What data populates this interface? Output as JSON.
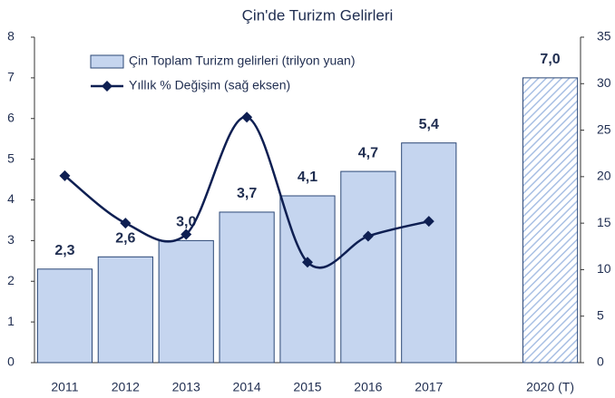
{
  "chart_data": {
    "type": "bar_line",
    "title": "Çin'de Turizm Gelirleri",
    "categories": [
      "2011",
      "2012",
      "2013",
      "2014",
      "2015",
      "2016",
      "2017",
      null,
      "2020 (T)"
    ],
    "series": [
      {
        "name": "Çin Toplam Turizm gelirleri (trilyon yuan)",
        "type": "bar",
        "color": "#c5d5ef",
        "edge_color": "#2b4776",
        "values": [
          2.3,
          2.6,
          3.0,
          3.7,
          4.1,
          4.7,
          5.4,
          null,
          7.0
        ],
        "value_labels": [
          "2,3",
          "2,6",
          "3,0",
          "3,7",
          "4,1",
          "4,7",
          "5,4",
          null,
          "7,0"
        ],
        "styles": [
          "solid",
          "solid",
          "solid",
          "solid",
          "solid",
          "solid",
          "solid",
          null,
          "hatched"
        ]
      },
      {
        "name": "Yıllık % Değişim (sağ eksen)",
        "type": "line",
        "axis": "y2",
        "color": "#0e1f52",
        "smooth": true,
        "values": [
          20.1,
          15.0,
          13.8,
          26.4,
          10.8,
          13.6,
          15.2,
          null,
          null
        ]
      }
    ],
    "ylim": [
      0,
      8
    ],
    "yticks": [
      0,
      1,
      2,
      3,
      4,
      5,
      6,
      7,
      8
    ],
    "y2lim": [
      0,
      35
    ],
    "y2ticks": [
      0,
      5,
      10,
      15,
      20,
      25,
      30,
      35
    ],
    "legend": "top-left"
  }
}
